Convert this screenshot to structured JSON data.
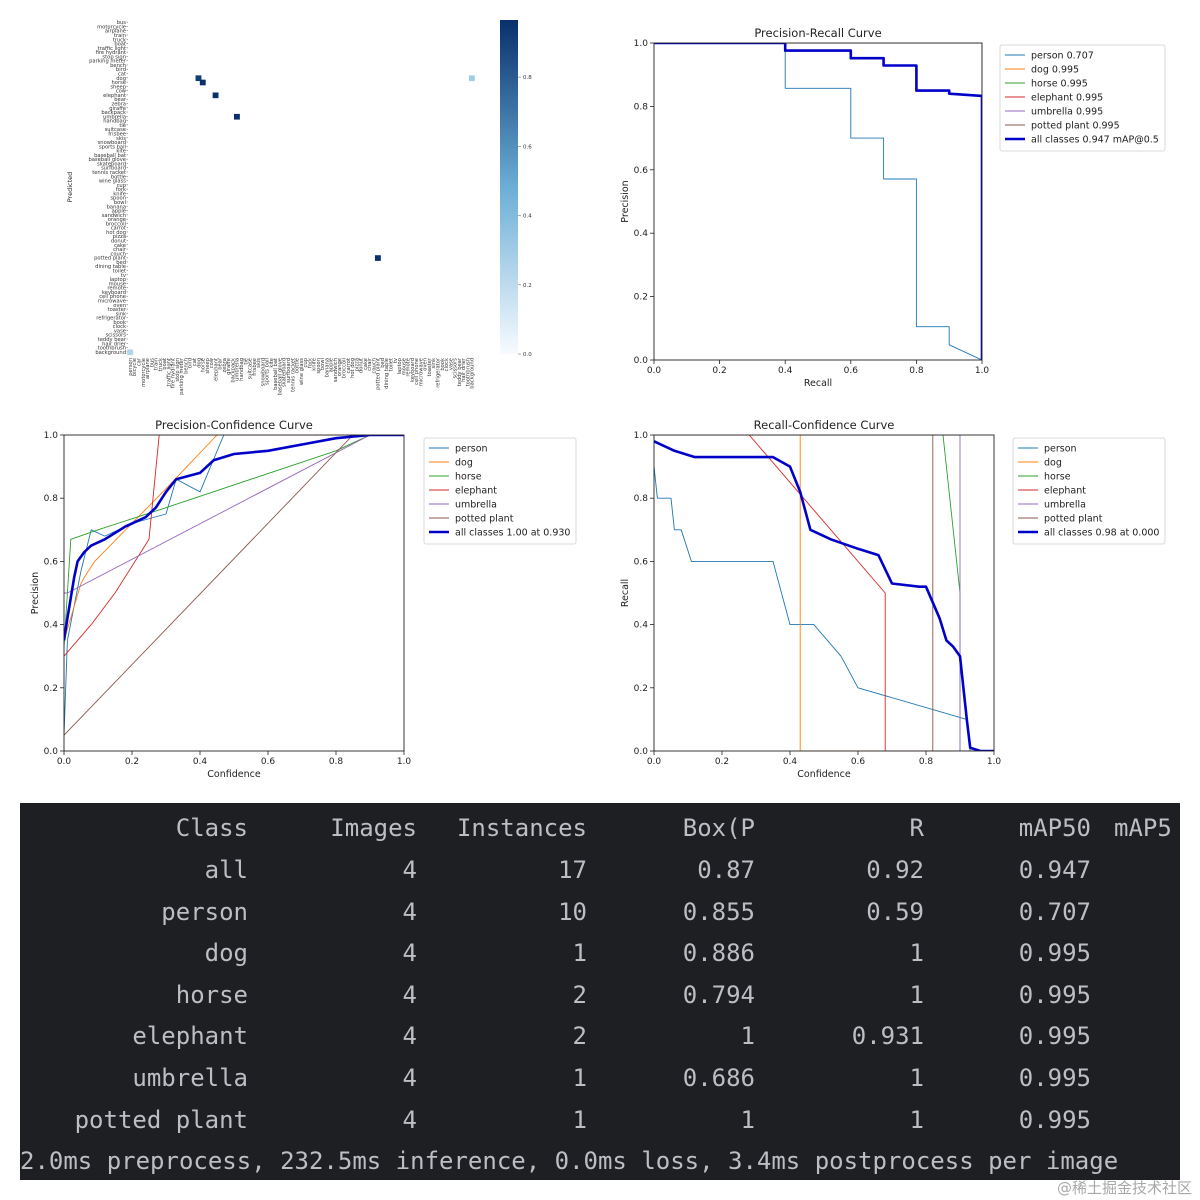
{
  "chart_data": [
    {
      "type": "heatmap",
      "ylabel": "Predicted",
      "row_labels": [
        "bus",
        "motorcycle",
        "airplane",
        "train",
        "truck",
        "boat",
        "traffic light",
        "fire hydrant",
        "stop sign",
        "parking meter",
        "bench",
        "bird",
        "cat",
        "dog",
        "horse",
        "sheep",
        "cow",
        "elephant",
        "bear",
        "zebra",
        "giraffe",
        "backpack",
        "umbrella",
        "handbag",
        "tie",
        "suitcase",
        "frisbee",
        "skis",
        "snowboard",
        "sports ball",
        "kite",
        "baseball bat",
        "baseball glove",
        "skateboard",
        "surfboard",
        "tennis racket",
        "bottle",
        "wine glass",
        "cup",
        "fork",
        "knife",
        "spoon",
        "bowl",
        "banana",
        "apple",
        "sandwich",
        "orange",
        "broccoli",
        "carrot",
        "hot dog",
        "pizza",
        "donut",
        "cake",
        "chair",
        "couch",
        "potted plant",
        "bed",
        "dining table",
        "toilet",
        "tv",
        "laptop",
        "mouse",
        "remote",
        "keyboard",
        "cell phone",
        "microwave",
        "oven",
        "toaster",
        "sink",
        "refrigerator",
        "book",
        "clock",
        "vase",
        "scissors",
        "teddy bear",
        "hair drier",
        "toothbrush",
        "background"
      ],
      "column_labels": [
        "person",
        "bicycle",
        "car",
        "motorcycle",
        "airplane",
        "bus",
        "train",
        "truck",
        "boat",
        "traffic light",
        "fire hydrant",
        "stop sign",
        "parking meter",
        "bench",
        "bird",
        "cat",
        "dog",
        "horse",
        "sheep",
        "cow",
        "elephant",
        "bear",
        "zebra",
        "giraffe",
        "backpack",
        "umbrella",
        "handbag",
        "tie",
        "suitcase",
        "frisbee",
        "skis",
        "snowboard",
        "sports ball",
        "kite",
        "baseball bat",
        "baseball glove",
        "skateboard",
        "surfboard",
        "tennis racket",
        "bottle",
        "wine glass",
        "cup",
        "fork",
        "knife",
        "spoon",
        "bowl",
        "banana",
        "apple",
        "sandwich",
        "orange",
        "broccoli",
        "carrot",
        "hot dog",
        "pizza",
        "donut",
        "cake",
        "chair",
        "couch",
        "potted plant",
        "bed",
        "dining table",
        "toilet",
        "tv",
        "laptop",
        "mouse",
        "remote",
        "keyboard",
        "cell phone",
        "microwave",
        "oven",
        "toaster",
        "sink",
        "refrigerator",
        "book",
        "clock",
        "vase",
        "scissors",
        "teddy bear",
        "hair drier",
        "toothbrush",
        "background"
      ],
      "cells": [
        {
          "row": "dog",
          "col": "dog",
          "value": 0.95
        },
        {
          "row": "horse",
          "col": "horse",
          "value": 1.0
        },
        {
          "row": "elephant",
          "col": "elephant",
          "value": 1.0
        },
        {
          "row": "umbrella",
          "col": "umbrella",
          "value": 1.0
        },
        {
          "row": "potted plant",
          "col": "potted plant",
          "value": 1.0
        },
        {
          "row": "dog",
          "col": "background",
          "value": 0.3
        },
        {
          "row": "background",
          "col": "person",
          "value": 0.25
        }
      ],
      "colorbar_ticks": [
        "0.0",
        "0.2",
        "0.4",
        "0.6",
        "0.8"
      ],
      "colors": {
        "low": "#f7fbff",
        "high": "#08306b"
      }
    },
    {
      "type": "line",
      "title": "Precision-Recall Curve",
      "xlabel": "Recall",
      "ylabel": "Precision",
      "xlim": [
        0,
        1
      ],
      "ylim": [
        0,
        1
      ],
      "xticks": [
        "0.0",
        "0.2",
        "0.4",
        "0.6",
        "0.8",
        "1.0"
      ],
      "yticks": [
        "0.0",
        "0.2",
        "0.4",
        "0.6",
        "0.8",
        "1.0"
      ],
      "legend_position": "outside-right",
      "series": [
        {
          "name": "person 0.707",
          "color": "#1f77b4",
          "points": [
            [
              0,
              1
            ],
            [
              0.4,
              1
            ],
            [
              0.4,
              0.857
            ],
            [
              0.6,
              0.857
            ],
            [
              0.6,
              0.7
            ],
            [
              0.7,
              0.7
            ],
            [
              0.7,
              0.571
            ],
            [
              0.8,
              0.571
            ],
            [
              0.8,
              0.105
            ],
            [
              0.9,
              0.105
            ],
            [
              0.9,
              0.048
            ],
            [
              1.0,
              0
            ]
          ]
        },
        {
          "name": "dog 0.995",
          "color": "#ff7f0e",
          "points": [
            [
              0,
              1
            ],
            [
              1,
              1
            ],
            [
              1,
              0
            ]
          ]
        },
        {
          "name": "horse 0.995",
          "color": "#2ca02c",
          "points": [
            [
              0,
              1
            ],
            [
              1,
              1
            ],
            [
              1,
              0
            ]
          ]
        },
        {
          "name": "elephant 0.995",
          "color": "#d62728",
          "points": [
            [
              0,
              1
            ],
            [
              1,
              1
            ],
            [
              1,
              0
            ]
          ]
        },
        {
          "name": "umbrella 0.995",
          "color": "#9467bd",
          "points": [
            [
              0,
              1
            ],
            [
              1,
              1
            ],
            [
              1,
              0
            ]
          ]
        },
        {
          "name": "potted plant 0.995",
          "color": "#8c564b",
          "points": [
            [
              0,
              1
            ],
            [
              1,
              1
            ],
            [
              1,
              0
            ]
          ]
        },
        {
          "name": "all classes 0.947 mAP@0.5",
          "color": "#0000c8",
          "bold": true,
          "points": [
            [
              0,
              1
            ],
            [
              0.4,
              1
            ],
            [
              0.4,
              0.976
            ],
            [
              0.6,
              0.976
            ],
            [
              0.6,
              0.952
            ],
            [
              0.7,
              0.952
            ],
            [
              0.7,
              0.929
            ],
            [
              0.8,
              0.929
            ],
            [
              0.8,
              0.85
            ],
            [
              0.9,
              0.85
            ],
            [
              0.9,
              0.84
            ],
            [
              1.0,
              0.833
            ],
            [
              1.0,
              0
            ]
          ]
        }
      ]
    },
    {
      "type": "line",
      "title": "Precision-Confidence Curve",
      "xlabel": "Confidence",
      "ylabel": "Precision",
      "xlim": [
        0,
        1
      ],
      "ylim": [
        0,
        1
      ],
      "xticks": [
        "0.0",
        "0.2",
        "0.4",
        "0.6",
        "0.8",
        "1.0"
      ],
      "yticks": [
        "0.0",
        "0.2",
        "0.4",
        "0.6",
        "0.8",
        "1.0"
      ],
      "legend_position": "outside-right",
      "series": [
        {
          "name": "person",
          "color": "#1f77b4",
          "points": [
            [
              0,
              0.05
            ],
            [
              0.01,
              0.35
            ],
            [
              0.05,
              0.57
            ],
            [
              0.08,
              0.7
            ],
            [
              0.12,
              0.68
            ],
            [
              0.2,
              0.72
            ],
            [
              0.3,
              0.75
            ],
            [
              0.33,
              0.86
            ],
            [
              0.4,
              0.82
            ],
            [
              0.47,
              1.0
            ],
            [
              1,
              1
            ]
          ]
        },
        {
          "name": "dog",
          "color": "#ff7f0e",
          "points": [
            [
              0,
              0.35
            ],
            [
              0.05,
              0.53
            ],
            [
              0.06,
              0.55
            ],
            [
              0.09,
              0.6
            ],
            [
              0.3,
              0.83
            ],
            [
              0.45,
              1.0
            ],
            [
              1,
              1
            ]
          ]
        },
        {
          "name": "horse",
          "color": "#2ca02c",
          "points": [
            [
              0,
              0.33
            ],
            [
              0.01,
              0.5
            ],
            [
              0.02,
              0.67
            ],
            [
              0.1,
              0.7
            ],
            [
              0.3,
              0.77
            ],
            [
              0.8,
              0.95
            ],
            [
              0.9,
              1.0
            ],
            [
              1,
              1
            ]
          ]
        },
        {
          "name": "elephant",
          "color": "#d62728",
          "points": [
            [
              0,
              0.3
            ],
            [
              0.08,
              0.4
            ],
            [
              0.15,
              0.5
            ],
            [
              0.25,
              0.67
            ],
            [
              0.28,
              1.0
            ],
            [
              1,
              1
            ]
          ]
        },
        {
          "name": "umbrella",
          "color": "#9467bd",
          "points": [
            [
              0,
              0.5
            ],
            [
              0.01,
              0.5
            ],
            [
              0.9,
              1.0
            ],
            [
              1,
              1
            ]
          ]
        },
        {
          "name": "potted plant",
          "color": "#8c564b",
          "points": [
            [
              0,
              0.05
            ],
            [
              0.85,
              1.0
            ],
            [
              1,
              1
            ]
          ]
        },
        {
          "name": "all classes 1.00 at 0.930",
          "color": "#0000c8",
          "bold": true,
          "points": [
            [
              0,
              0.35
            ],
            [
              0.01,
              0.42
            ],
            [
              0.03,
              0.55
            ],
            [
              0.04,
              0.6
            ],
            [
              0.06,
              0.63
            ],
            [
              0.08,
              0.65
            ],
            [
              0.12,
              0.67
            ],
            [
              0.18,
              0.71
            ],
            [
              0.24,
              0.74
            ],
            [
              0.27,
              0.77
            ],
            [
              0.3,
              0.82
            ],
            [
              0.33,
              0.86
            ],
            [
              0.4,
              0.88
            ],
            [
              0.44,
              0.92
            ],
            [
              0.5,
              0.94
            ],
            [
              0.6,
              0.95
            ],
            [
              0.7,
              0.97
            ],
            [
              0.8,
              0.99
            ],
            [
              0.9,
              1.0
            ],
            [
              1,
              1
            ]
          ]
        }
      ]
    },
    {
      "type": "line",
      "title": "Recall-Confidence Curve",
      "xlabel": "Confidence",
      "ylabel": "Recall",
      "xlim": [
        0,
        1
      ],
      "ylim": [
        0,
        1
      ],
      "xticks": [
        "0.0",
        "0.2",
        "0.4",
        "0.6",
        "0.8",
        "1.0"
      ],
      "yticks": [
        "0.0",
        "0.2",
        "0.4",
        "0.6",
        "0.8",
        "1.0"
      ],
      "legend_position": "outside-right",
      "series": [
        {
          "name": "person",
          "color": "#1f77b4",
          "points": [
            [
              0,
              0.9
            ],
            [
              0.01,
              0.8
            ],
            [
              0.05,
              0.8
            ],
            [
              0.06,
              0.7
            ],
            [
              0.08,
              0.7
            ],
            [
              0.11,
              0.6
            ],
            [
              0.35,
              0.6
            ],
            [
              0.4,
              0.4
            ],
            [
              0.47,
              0.4
            ],
            [
              0.55,
              0.3
            ],
            [
              0.6,
              0.2
            ],
            [
              0.92,
              0.1
            ],
            [
              0.93,
              0
            ],
            [
              1,
              0
            ]
          ]
        },
        {
          "name": "dog",
          "color": "#ff7f0e",
          "points": [
            [
              0,
              1
            ],
            [
              0.43,
              1
            ],
            [
              0.43,
              0
            ],
            [
              1,
              0
            ]
          ]
        },
        {
          "name": "horse",
          "color": "#2ca02c",
          "points": [
            [
              0,
              1
            ],
            [
              0.85,
              1
            ],
            [
              0.9,
              0.5
            ],
            [
              0.9,
              0
            ],
            [
              1,
              0
            ]
          ]
        },
        {
          "name": "elephant",
          "color": "#d62728",
          "points": [
            [
              0,
              1
            ],
            [
              0.28,
              1
            ],
            [
              0.68,
              0.5
            ],
            [
              0.68,
              0
            ],
            [
              1,
              0
            ]
          ]
        },
        {
          "name": "umbrella",
          "color": "#9467bd",
          "points": [
            [
              0,
              1
            ],
            [
              0.9,
              1
            ],
            [
              0.9,
              0
            ],
            [
              1,
              0
            ]
          ]
        },
        {
          "name": "potted plant",
          "color": "#8c564b",
          "points": [
            [
              0,
              1
            ],
            [
              0.82,
              1
            ],
            [
              0.82,
              0
            ],
            [
              1,
              0
            ]
          ]
        },
        {
          "name": "all classes 0.98 at 0.000",
          "color": "#0000c8",
          "bold": true,
          "points": [
            [
              0,
              0.98
            ],
            [
              0.06,
              0.95
            ],
            [
              0.12,
              0.93
            ],
            [
              0.35,
              0.93
            ],
            [
              0.4,
              0.9
            ],
            [
              0.43,
              0.82
            ],
            [
              0.46,
              0.7
            ],
            [
              0.52,
              0.67
            ],
            [
              0.6,
              0.64
            ],
            [
              0.66,
              0.62
            ],
            [
              0.7,
              0.53
            ],
            [
              0.78,
              0.52
            ],
            [
              0.8,
              0.52
            ],
            [
              0.84,
              0.42
            ],
            [
              0.86,
              0.35
            ],
            [
              0.88,
              0.33
            ],
            [
              0.9,
              0.3
            ],
            [
              0.92,
              0.1
            ],
            [
              0.93,
              0.01
            ],
            [
              0.96,
              0
            ],
            [
              1,
              0
            ]
          ]
        }
      ]
    }
  ],
  "terminal": {
    "header": [
      "Class",
      "Images",
      "Instances",
      "Box(P",
      "R",
      "mAP50",
      "mAP5"
    ],
    "rows": [
      [
        "all",
        "4",
        "17",
        "0.87",
        "0.92",
        "0.947"
      ],
      [
        "person",
        "4",
        "10",
        "0.855",
        "0.59",
        "0.707"
      ],
      [
        "dog",
        "4",
        "1",
        "0.886",
        "1",
        "0.995"
      ],
      [
        "horse",
        "4",
        "2",
        "0.794",
        "1",
        "0.995"
      ],
      [
        "elephant",
        "4",
        "2",
        "1",
        "0.931",
        "0.995"
      ],
      [
        "umbrella",
        "4",
        "1",
        "0.686",
        "1",
        "0.995"
      ],
      [
        "potted plant",
        "4",
        "1",
        "1",
        "1",
        "0.995"
      ]
    ],
    "footer": "2.0ms preprocess, 232.5ms inference, 0.0ms loss, 3.4ms postprocess per image",
    "colors": {
      "bg": "#1e1f22",
      "text": "#bcbec4"
    }
  },
  "watermark": "@稀土掘金技术社区"
}
